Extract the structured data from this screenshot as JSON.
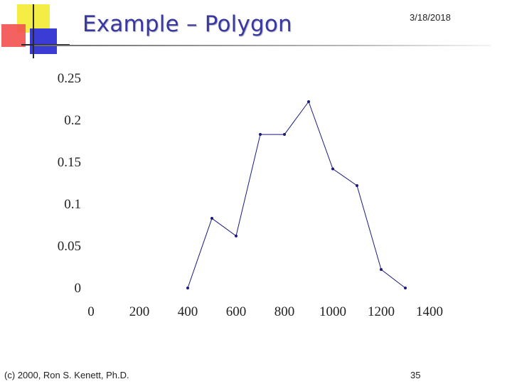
{
  "slide": {
    "title": "Example – Polygon",
    "date": "3/18/2018",
    "footer_left": "(c) 2000, Ron S. Kenett, Ph.D.",
    "page_number": "35"
  },
  "colors": {
    "title": "#3838a0",
    "series": "#1a1a7a",
    "logo_yellow": "#f4ed45",
    "logo_red": "#f25050",
    "logo_blue": "#3b3bd6"
  },
  "chart_data": {
    "type": "line",
    "title": "",
    "xlabel": "",
    "ylabel": "",
    "xlim": [
      0,
      1400
    ],
    "ylim": [
      0,
      0.25
    ],
    "x_ticks": [
      0,
      200,
      400,
      600,
      800,
      1000,
      1200,
      1400
    ],
    "y_ticks": [
      0,
      0.05,
      0.1,
      0.15,
      0.2,
      0.25
    ],
    "y_tick_labels": [
      "0",
      "0.05",
      "0.1",
      "0.15",
      "0.2",
      "0.25"
    ],
    "grid": false,
    "legend": "none",
    "series": [
      {
        "x": [
          400,
          500,
          600,
          700,
          800,
          900,
          1000,
          1100,
          1200,
          1300
        ],
        "y": [
          0.0,
          0.083,
          0.062,
          0.183,
          0.183,
          0.222,
          0.142,
          0.122,
          0.022,
          0.0
        ]
      }
    ]
  }
}
